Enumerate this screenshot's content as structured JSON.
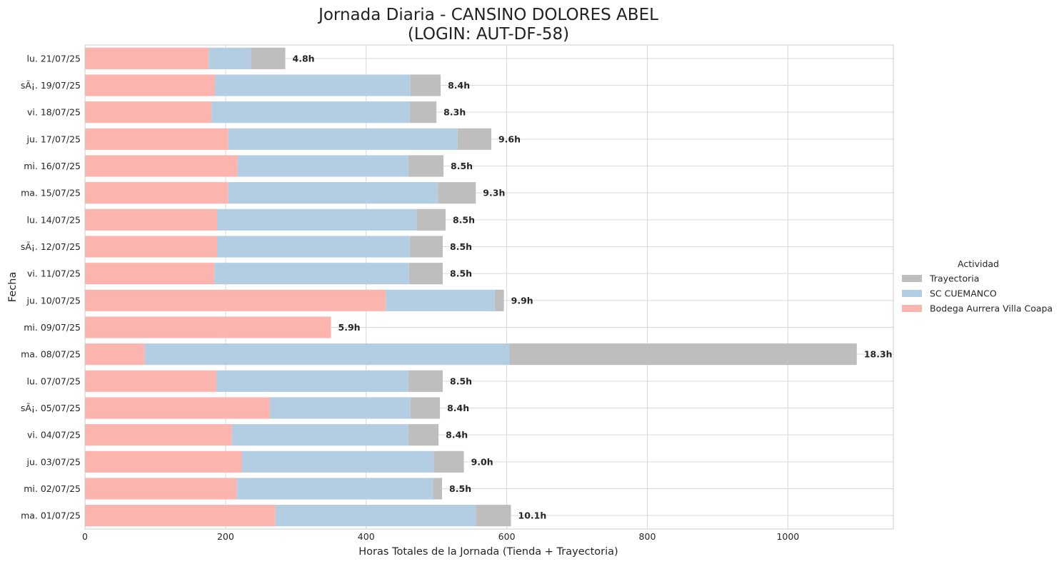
{
  "chart_data": {
    "type": "bar",
    "orientation": "horizontal",
    "stacked": true,
    "title_line1": "Jornada Diaria - CANSINO DOLORES ABEL",
    "title_line2": "(LOGIN: AUT-DF-58)",
    "xlabel": "Horas Totales de la Jornada (Tienda + Trayectoria)",
    "ylabel": "Fecha",
    "xlim": [
      0,
      1150
    ],
    "xticks": [
      0,
      200,
      400,
      600,
      800,
      1000
    ],
    "grid": true,
    "legend": {
      "title": "Actividad",
      "placement": "right",
      "entries": [
        "Trayectoria",
        "SC CUEMANCO",
        "Bodega Aurrera Villa Coapa"
      ]
    },
    "categories": [
      "lu. 21/07/25",
      "sÃ¡. 19/07/25",
      "vi. 18/07/25",
      "ju. 17/07/25",
      "mi. 16/07/25",
      "ma. 15/07/25",
      "lu. 14/07/25",
      "sÃ¡. 12/07/25",
      "vi. 11/07/25",
      "ju. 10/07/25",
      "mi. 09/07/25",
      "ma. 08/07/25",
      "lu. 07/07/25",
      "sÃ¡. 05/07/25",
      "vi. 04/07/25",
      "ju. 03/07/25",
      "mi. 02/07/25",
      "ma. 01/07/25"
    ],
    "series": [
      {
        "name": "Bodega Aurrera Villa Coapa",
        "color": "#fbb4ae",
        "values": [
          176,
          185,
          180,
          204,
          217,
          204,
          188,
          188,
          184,
          428,
          350,
          85,
          187,
          263,
          209,
          223,
          216,
          271
        ]
      },
      {
        "name": "SC CUEMANCO",
        "color": "#b3cde3",
        "values": [
          60,
          278,
          282,
          326,
          243,
          298,
          284,
          274,
          277,
          155,
          0,
          519,
          273,
          200,
          251,
          273,
          279,
          285
        ]
      },
      {
        "name": "Trayectoria",
        "color": "#bebebe",
        "values": [
          49,
          43,
          38,
          48,
          50,
          54,
          41,
          47,
          48,
          13,
          0,
          494,
          49,
          42,
          43,
          43,
          13,
          50
        ]
      }
    ],
    "totals": [
      "4.8h",
      "8.4h",
      "8.3h",
      "9.6h",
      "8.5h",
      "9.3h",
      "8.5h",
      "8.5h",
      "8.5h",
      "9.9h",
      "5.9h",
      "18.3h",
      "8.5h",
      "8.4h",
      "8.4h",
      "9.0h",
      "8.5h",
      "10.1h"
    ]
  }
}
